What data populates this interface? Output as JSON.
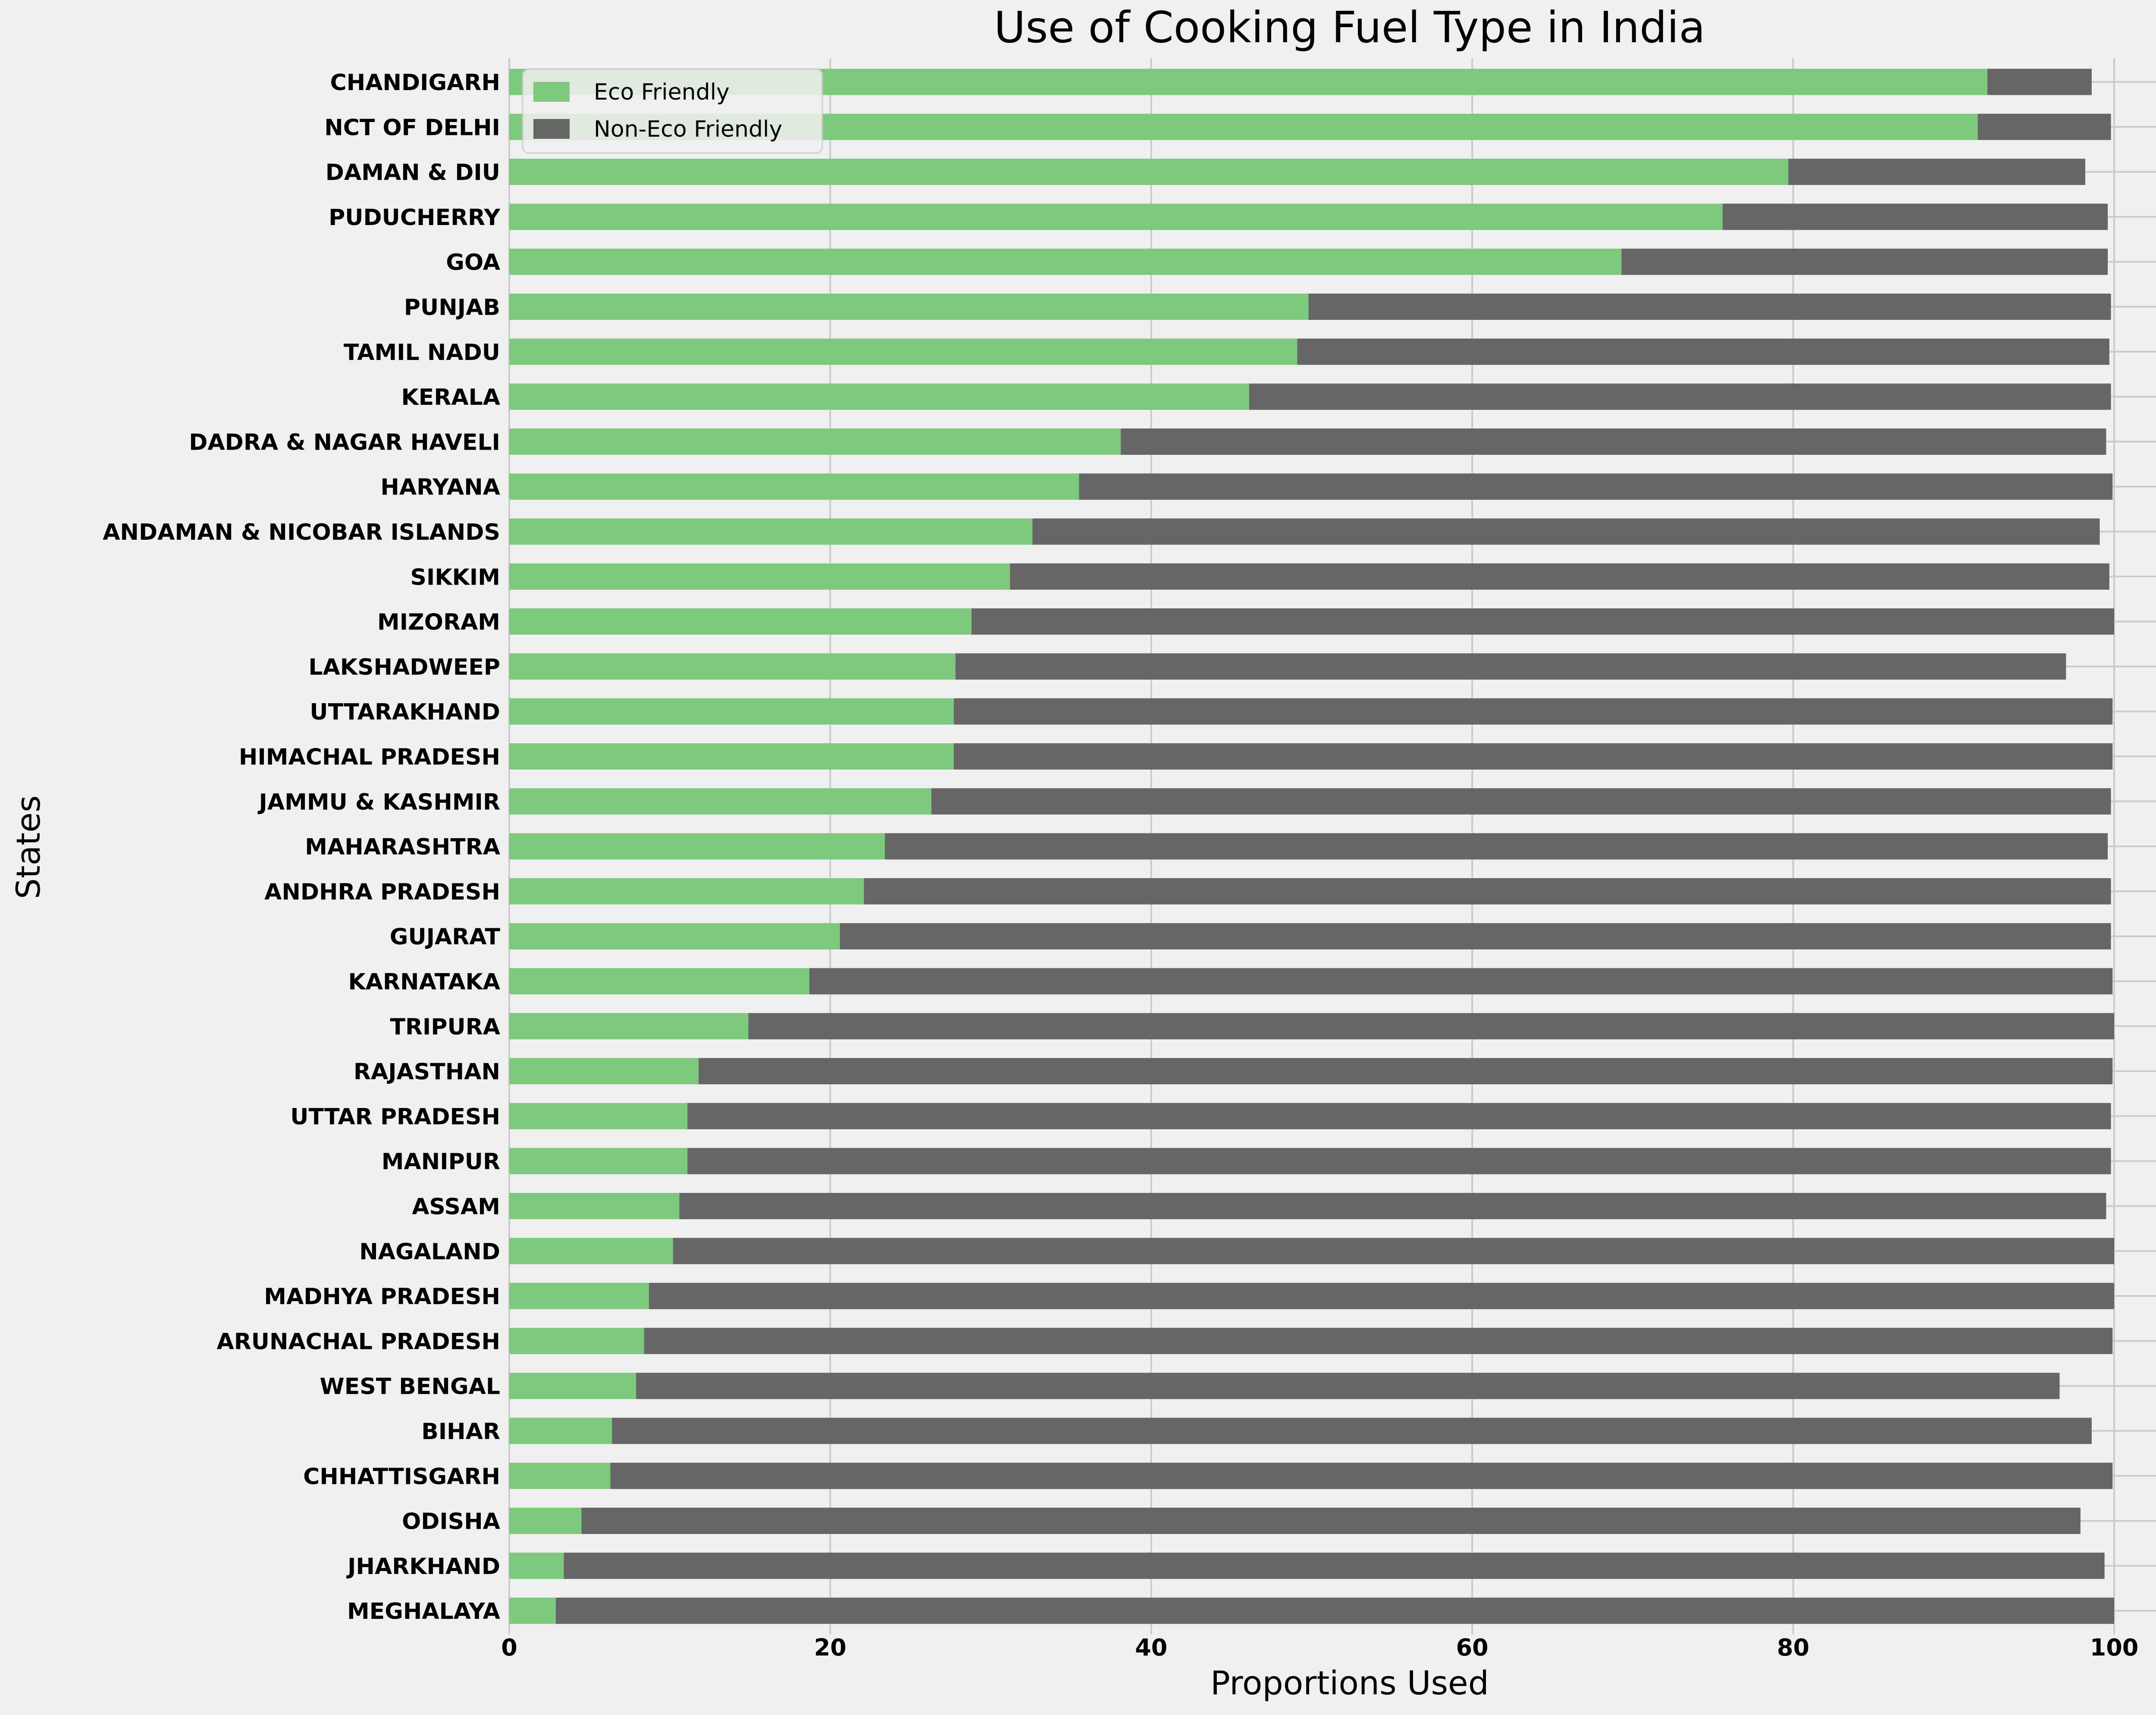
{
  "chart_data": {
    "type": "bar",
    "orientation": "horizontal",
    "stacked": true,
    "title": "Use of Cooking Fuel Type in India",
    "xlabel": "Proportions Used",
    "ylabel": "States",
    "xlim": [
      0,
      100
    ],
    "xticks": [
      "0",
      "20",
      "40",
      "60",
      "80",
      "100"
    ],
    "grid": true,
    "legend_position": "top-left",
    "categories": [
      "CHANDIGARH",
      "NCT OF DELHI",
      "DAMAN & DIU",
      "PUDUCHERRY",
      "GOA",
      "PUNJAB",
      "TAMIL NADU",
      "KERALA",
      "DADRA & NAGAR HAVELI",
      "HARYANA",
      "ANDAMAN & NICOBAR ISLANDS",
      "SIKKIM",
      "MIZORAM",
      "LAKSHADWEEP",
      "UTTARAKHAND",
      "HIMACHAL PRADESH",
      "JAMMU & KASHMIR",
      "MAHARASHTRA",
      "ANDHRA PRADESH",
      "GUJARAT",
      "KARNATAKA",
      "TRIPURA",
      "RAJASTHAN",
      "UTTAR PRADESH",
      "MANIPUR",
      "ASSAM",
      "NAGALAND",
      "MADHYA PRADESH",
      "ARUNACHAL PRADESH",
      "WEST BENGAL",
      "BIHAR",
      "CHHATTISGARH",
      "ODISHA",
      "JHARKHAND",
      "MEGHALAYA"
    ],
    "series": [
      {
        "name": "Eco Friendly",
        "color": "#7fc97f",
        "values": [
          92.1,
          91.5,
          79.7,
          75.6,
          69.3,
          49.8,
          49.1,
          46.1,
          38.1,
          35.5,
          32.6,
          31.2,
          28.8,
          27.8,
          27.7,
          27.7,
          26.3,
          23.4,
          22.1,
          20.6,
          18.7,
          14.9,
          11.8,
          11.1,
          11.1,
          10.6,
          10.2,
          8.7,
          8.4,
          7.9,
          6.4,
          6.3,
          4.5,
          3.4,
          2.9
        ]
      },
      {
        "name": "Non-Eco Friendly",
        "color": "#666666",
        "values": [
          6.5,
          8.3,
          18.5,
          24.0,
          30.3,
          50.0,
          50.6,
          53.7,
          61.4,
          64.4,
          66.5,
          68.5,
          71.2,
          69.2,
          72.2,
          72.2,
          73.5,
          76.2,
          77.7,
          79.2,
          81.2,
          85.1,
          88.1,
          88.7,
          88.7,
          88.9,
          89.8,
          91.3,
          91.5,
          88.7,
          92.2,
          93.6,
          93.4,
          96.0,
          97.1
        ]
      }
    ]
  }
}
